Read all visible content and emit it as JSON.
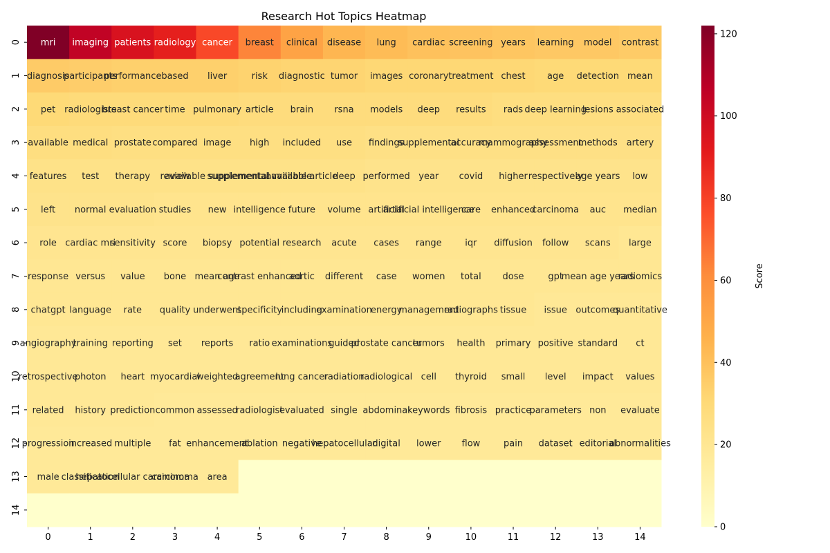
{
  "chart_data": {
    "type": "heatmap",
    "title": "Research Hot Topics Heatmap",
    "xlabel": "",
    "ylabel": "",
    "x_ticks": [
      "0",
      "1",
      "2",
      "3",
      "4",
      "5",
      "6",
      "7",
      "8",
      "9",
      "10",
      "11",
      "12",
      "13",
      "14"
    ],
    "y_ticks": [
      "0",
      "1",
      "2",
      "3",
      "4",
      "5",
      "6",
      "7",
      "8",
      "9",
      "10",
      "11",
      "12",
      "13",
      "14"
    ],
    "colorbar": {
      "label": "Score",
      "range": [
        0,
        122
      ],
      "ticks": [
        0,
        20,
        40,
        60,
        80,
        100,
        120
      ],
      "colormap": "YlOrRd"
    },
    "cells": [
      [
        [
          "mri",
          122
        ],
        [
          "imaging",
          105
        ],
        [
          "patients",
          96
        ],
        [
          "radiology",
          90
        ],
        [
          "cancer",
          78
        ],
        [
          "breast",
          63
        ],
        [
          "clinical",
          52
        ],
        [
          "disease",
          44
        ],
        [
          "lung",
          42
        ],
        [
          "cardiac",
          40
        ],
        [
          "screening",
          39
        ],
        [
          "years",
          38
        ],
        [
          "learning",
          37
        ],
        [
          "model",
          37
        ],
        [
          "contrast",
          36
        ]
      ],
      [
        [
          "diagnosis",
          36
        ],
        [
          "participants",
          35
        ],
        [
          "performance",
          34
        ],
        [
          "based",
          34
        ],
        [
          "liver",
          34
        ],
        [
          "risk",
          33
        ],
        [
          "diagnostic",
          32
        ],
        [
          "tumor",
          32
        ],
        [
          "images",
          31
        ],
        [
          "coronary",
          31
        ],
        [
          "treatment",
          31
        ],
        [
          "chest",
          31
        ],
        [
          "age",
          30
        ],
        [
          "detection",
          30
        ],
        [
          "mean",
          30
        ]
      ],
      [
        [
          "pet",
          30
        ],
        [
          "radiologists",
          29
        ],
        [
          "breast cancer",
          29
        ],
        [
          "time",
          29
        ],
        [
          "pulmonary",
          29
        ],
        [
          "article",
          28
        ],
        [
          "brain",
          28
        ],
        [
          "rsna",
          28
        ],
        [
          "models",
          28
        ],
        [
          "deep",
          28
        ],
        [
          "results",
          28
        ],
        [
          "rads",
          27
        ],
        [
          "deep learning",
          27
        ],
        [
          "lesions",
          27
        ],
        [
          "associated",
          27
        ]
      ],
      [
        [
          "available",
          27
        ],
        [
          "medical",
          27
        ],
        [
          "prostate",
          26
        ],
        [
          "compared",
          26
        ],
        [
          "image",
          26
        ],
        [
          "high",
          26
        ],
        [
          "included",
          26
        ],
        [
          "use",
          26
        ],
        [
          "findings",
          25
        ],
        [
          "supplemental",
          25
        ],
        [
          "accuracy",
          25
        ],
        [
          "mammography",
          25
        ],
        [
          "assessment",
          25
        ],
        [
          "methods",
          25
        ],
        [
          "artery",
          25
        ]
      ],
      [
        [
          "features",
          24
        ],
        [
          "test",
          24
        ],
        [
          "therapy",
          24
        ],
        [
          "review",
          24
        ],
        [
          "available supplemental",
          24
        ],
        [
          "supplemental available",
          24
        ],
        [
          "available article",
          24
        ],
        [
          "deep",
          24
        ],
        [
          "performed",
          23
        ],
        [
          "year",
          23
        ],
        [
          "covid",
          23
        ],
        [
          "higher",
          23
        ],
        [
          "respectively",
          23
        ],
        [
          "age years",
          23
        ],
        [
          "low",
          23
        ]
      ],
      [
        [
          "left",
          23
        ],
        [
          "normal",
          23
        ],
        [
          "evaluation",
          23
        ],
        [
          "studies",
          22
        ],
        [
          "new",
          22
        ],
        [
          "intelligence",
          22
        ],
        [
          "future",
          22
        ],
        [
          "volume",
          22
        ],
        [
          "artificial",
          22
        ],
        [
          "artificial intelligence",
          22
        ],
        [
          "care",
          22
        ],
        [
          "enhanced",
          22
        ],
        [
          "carcinoma",
          22
        ],
        [
          "auc",
          22
        ],
        [
          "median",
          22
        ]
      ],
      [
        [
          "role",
          21
        ],
        [
          "cardiac mri",
          21
        ],
        [
          "sensitivity",
          21
        ],
        [
          "score",
          21
        ],
        [
          "biopsy",
          21
        ],
        [
          "potential",
          21
        ],
        [
          "research",
          21
        ],
        [
          "acute",
          21
        ],
        [
          "cases",
          21
        ],
        [
          "range",
          21
        ],
        [
          "iqr",
          21
        ],
        [
          "diffusion",
          21
        ],
        [
          "follow",
          21
        ],
        [
          "scans",
          21
        ],
        [
          "large",
          20
        ]
      ],
      [
        [
          "response",
          20
        ],
        [
          "versus",
          20
        ],
        [
          "value",
          20
        ],
        [
          "bone",
          20
        ],
        [
          "mean age",
          20
        ],
        [
          "contrast enhanced",
          20
        ],
        [
          "aortic",
          20
        ],
        [
          "different",
          20
        ],
        [
          "case",
          20
        ],
        [
          "women",
          20
        ],
        [
          "total",
          20
        ],
        [
          "dose",
          20
        ],
        [
          "gpt",
          20
        ],
        [
          "mean age years",
          20
        ],
        [
          "radiomics",
          20
        ]
      ],
      [
        [
          "chatgpt",
          20
        ],
        [
          "language",
          20
        ],
        [
          "rate",
          20
        ],
        [
          "quality",
          20
        ],
        [
          "underwent",
          20
        ],
        [
          "specificity",
          20
        ],
        [
          "including",
          20
        ],
        [
          "examination",
          20
        ],
        [
          "energy",
          20
        ],
        [
          "management",
          20
        ],
        [
          "radiographs",
          20
        ],
        [
          "tissue",
          20
        ],
        [
          "issue",
          19
        ],
        [
          "outcomes",
          19
        ],
        [
          "quantitative",
          19
        ]
      ],
      [
        [
          "angiography",
          19
        ],
        [
          "training",
          19
        ],
        [
          "reporting",
          19
        ],
        [
          "set",
          19
        ],
        [
          "reports",
          19
        ],
        [
          "ratio",
          19
        ],
        [
          "examinations",
          19
        ],
        [
          "guided",
          19
        ],
        [
          "prostate cancer",
          19
        ],
        [
          "tumors",
          19
        ],
        [
          "health",
          19
        ],
        [
          "primary",
          19
        ],
        [
          "positive",
          19
        ],
        [
          "standard",
          19
        ],
        [
          "ct",
          19
        ]
      ],
      [
        [
          "retrospective",
          19
        ],
        [
          "photon",
          19
        ],
        [
          "heart",
          19
        ],
        [
          "myocardial",
          19
        ],
        [
          "weighted",
          19
        ],
        [
          "agreement",
          19
        ],
        [
          "lung cancer",
          19
        ],
        [
          "radiation",
          19
        ],
        [
          "radiological",
          19
        ],
        [
          "cell",
          19
        ],
        [
          "thyroid",
          19
        ],
        [
          "small",
          19
        ],
        [
          "level",
          19
        ],
        [
          "impact",
          19
        ],
        [
          "values",
          19
        ]
      ],
      [
        [
          "related",
          19
        ],
        [
          "history",
          19
        ],
        [
          "prediction",
          19
        ],
        [
          "common",
          18
        ],
        [
          "assessed",
          18
        ],
        [
          "radiologist",
          18
        ],
        [
          "evaluated",
          18
        ],
        [
          "single",
          18
        ],
        [
          "abdominal",
          18
        ],
        [
          "keywords",
          18
        ],
        [
          "fibrosis",
          18
        ],
        [
          "practice",
          18
        ],
        [
          "parameters",
          18
        ],
        [
          "non",
          18
        ],
        [
          "evaluate",
          18
        ]
      ],
      [
        [
          "progression",
          18
        ],
        [
          "increased",
          18
        ],
        [
          "multiple",
          18
        ],
        [
          "fat",
          18
        ],
        [
          "enhancement",
          18
        ],
        [
          "ablation",
          18
        ],
        [
          "negative",
          18
        ],
        [
          "hepatocellular",
          18
        ],
        [
          "digital",
          18
        ],
        [
          "lower",
          18
        ],
        [
          "flow",
          18
        ],
        [
          "pain",
          18
        ],
        [
          "dataset",
          18
        ],
        [
          "editorial",
          18
        ],
        [
          "abnormalities",
          18
        ]
      ],
      [
        [
          "male",
          18
        ],
        [
          "classification",
          18
        ],
        [
          "hepatocellular carcinoma",
          18
        ],
        [
          "carcinoma",
          18
        ],
        [
          "area",
          18
        ],
        [
          "",
          0
        ],
        [
          "",
          0
        ],
        [
          "",
          0
        ],
        [
          "",
          0
        ],
        [
          "",
          0
        ],
        [
          "",
          0
        ],
        [
          "",
          0
        ],
        [
          "",
          0
        ],
        [
          "",
          0
        ],
        [
          "",
          0
        ]
      ],
      [
        [
          "",
          0
        ],
        [
          "",
          0
        ],
        [
          "",
          0
        ],
        [
          "",
          0
        ],
        [
          "",
          0
        ],
        [
          "",
          0
        ],
        [
          "",
          0
        ],
        [
          "",
          0
        ],
        [
          "",
          0
        ],
        [
          "",
          0
        ],
        [
          "",
          0
        ],
        [
          "",
          0
        ],
        [
          "",
          0
        ],
        [
          "",
          0
        ],
        [
          "",
          0
        ]
      ]
    ]
  }
}
